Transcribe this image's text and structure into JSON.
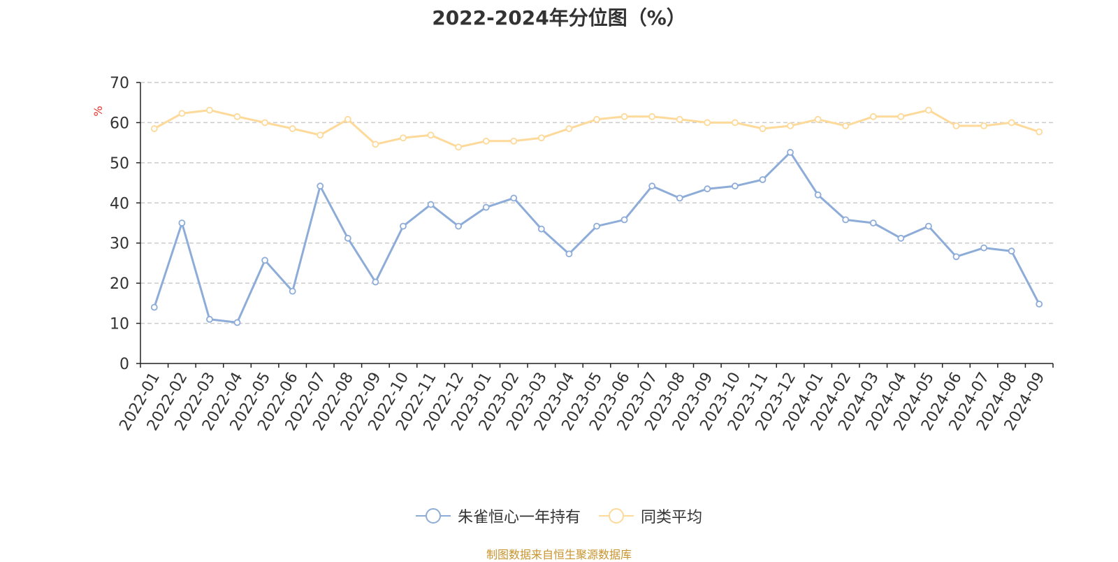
{
  "chart_data": {
    "type": "line",
    "title": "2022-2024年分位图（%）",
    "ylabel": "%",
    "xlabel": "",
    "ylim": [
      0,
      70
    ],
    "yticks": [
      0,
      10,
      20,
      30,
      40,
      50,
      60,
      70
    ],
    "grid": true,
    "legend_position": "bottom-center",
    "categories": [
      "2022-01",
      "2022-02",
      "2022-03",
      "2022-04",
      "2022-05",
      "2022-06",
      "2022-07",
      "2022-08",
      "2022-09",
      "2022-10",
      "2022-11",
      "2022-12",
      "2023-01",
      "2023-02",
      "2023-03",
      "2023-04",
      "2023-05",
      "2023-06",
      "2023-07",
      "2023-08",
      "2023-09",
      "2023-10",
      "2023-11",
      "2023-12",
      "2024-01",
      "2024-02",
      "2024-03",
      "2024-04",
      "2024-05",
      "2024-06",
      "2024-07",
      "2024-08",
      "2024-09"
    ],
    "series": [
      {
        "name": "朱雀恒心一年持有",
        "color": "#8eacd8",
        "values": [
          14.0,
          35.0,
          11.0,
          10.2,
          25.7,
          18.0,
          44.2,
          31.2,
          20.3,
          34.2,
          39.6,
          34.2,
          38.9,
          41.2,
          33.5,
          27.3,
          34.2,
          35.8,
          44.2,
          41.2,
          43.5,
          44.2,
          45.8,
          52.6,
          42.0,
          35.8,
          35.0,
          31.2,
          34.2,
          26.6,
          28.8,
          28.0,
          14.8
        ]
      },
      {
        "name": "同类平均",
        "color": "#fdd99a",
        "values": [
          58.5,
          62.3,
          63.1,
          61.5,
          60.0,
          58.5,
          56.9,
          60.8,
          54.6,
          56.2,
          56.9,
          53.9,
          55.4,
          55.4,
          56.2,
          58.5,
          60.8,
          61.5,
          61.5,
          60.8,
          60.0,
          60.0,
          58.5,
          59.2,
          60.8,
          59.2,
          61.5,
          61.5,
          63.1,
          59.2,
          59.2,
          60.0,
          57.7
        ]
      }
    ]
  },
  "footer": {
    "source": "制图数据来自恒生聚源数据库"
  },
  "colors": {
    "axis": "#222222",
    "grid": "#cccccc",
    "tick_text": "#333333",
    "ylabel": "#e8322c"
  }
}
